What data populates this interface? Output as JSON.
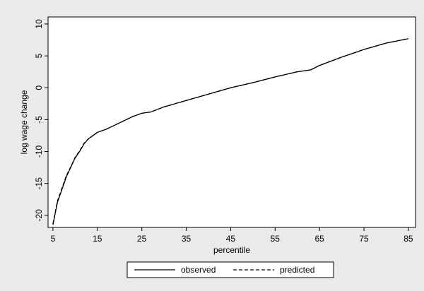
{
  "chart_data": {
    "type": "line",
    "x_label": "percentile",
    "y_label": "log wage change",
    "x": [
      5,
      6,
      7,
      8,
      9,
      10,
      11,
      12,
      13,
      14,
      15,
      17,
      20,
      23,
      25,
      27,
      30,
      35,
      40,
      45,
      50,
      55,
      60,
      63,
      65,
      70,
      75,
      80,
      85
    ],
    "series": [
      {
        "name": "observed",
        "color": "#000000",
        "dash": "solid",
        "values": [
          -21.5,
          -18,
          -16,
          -14,
          -12.5,
          -11,
          -10,
          -8.8,
          -8,
          -7.5,
          -7,
          -6.5,
          -5.5,
          -4.5,
          -4,
          -3.8,
          -3,
          -2,
          -1,
          0,
          0.8,
          1.7,
          2.5,
          2.8,
          3.5,
          4.8,
          6,
          7,
          7.7
        ]
      },
      {
        "name": "predicted",
        "color": "#000000",
        "dash": "dashed",
        "values": [
          -21.3,
          -17.8,
          -15.8,
          -13.8,
          -12.4,
          -10.9,
          -9.9,
          -8.7,
          -8,
          -7.5,
          -7,
          -6.5,
          -5.5,
          -4.5,
          -4,
          -3.8,
          -3,
          -2,
          -1,
          0,
          0.8,
          1.7,
          2.5,
          2.8,
          3.5,
          4.8,
          6,
          7,
          7.7
        ]
      }
    ],
    "xlim": [
      3.9,
      86.6
    ],
    "ylim": [
      -21.9,
      11.1
    ],
    "xticks": [
      5,
      15,
      25,
      35,
      45,
      55,
      65,
      75,
      85
    ],
    "yticks": [
      -20,
      -15,
      -10,
      -5,
      0,
      5,
      10
    ],
    "grid": false,
    "legend": "bottom"
  }
}
